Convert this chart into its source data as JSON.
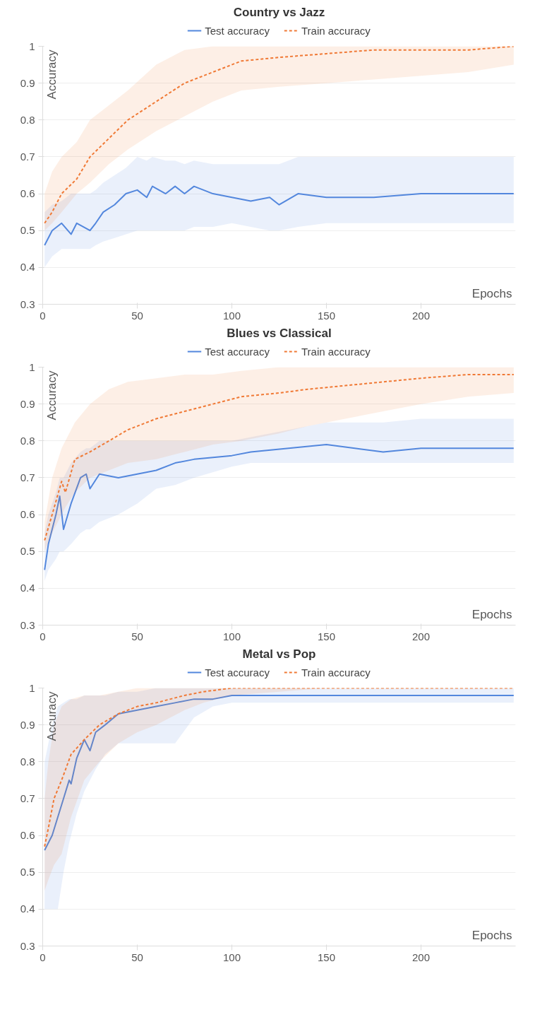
{
  "chart_data": [
    {
      "type": "line",
      "title": "Country vs Jazz",
      "xlabel": "Epochs",
      "ylabel": "Accuracy",
      "legend": "top",
      "grid": "y",
      "xlim": [
        0,
        250
      ],
      "ylim": [
        0.3,
        1
      ],
      "xticks": [
        0,
        50,
        100,
        150,
        200
      ],
      "yticks": [
        0.3,
        0.4,
        0.5,
        0.6,
        0.7,
        0.8,
        0.9,
        1
      ],
      "series": [
        {
          "name": "Test accuracy",
          "color": "#5387dd",
          "line_style": "solid",
          "x": [
            1,
            5,
            10,
            15,
            18,
            25,
            28,
            32,
            38,
            44,
            50,
            55,
            58,
            65,
            70,
            75,
            80,
            90,
            100,
            110,
            120,
            125,
            135,
            150,
            175,
            200,
            225,
            249
          ],
          "values": [
            0.46,
            0.5,
            0.52,
            0.49,
            0.52,
            0.5,
            0.52,
            0.55,
            0.57,
            0.6,
            0.61,
            0.59,
            0.62,
            0.6,
            0.62,
            0.6,
            0.62,
            0.6,
            0.59,
            0.58,
            0.59,
            0.57,
            0.6,
            0.59,
            0.59,
            0.6,
            0.6,
            0.6
          ],
          "lower": [
            0.4,
            0.43,
            0.45,
            0.45,
            0.45,
            0.45,
            0.46,
            0.47,
            0.48,
            0.49,
            0.5,
            0.5,
            0.5,
            0.5,
            0.5,
            0.5,
            0.51,
            0.51,
            0.52,
            0.51,
            0.5,
            0.5,
            0.51,
            0.52,
            0.52,
            0.52,
            0.52,
            0.52
          ],
          "upper": [
            0.55,
            0.57,
            0.58,
            0.6,
            0.6,
            0.6,
            0.61,
            0.63,
            0.65,
            0.67,
            0.7,
            0.69,
            0.7,
            0.69,
            0.69,
            0.68,
            0.69,
            0.68,
            0.68,
            0.68,
            0.68,
            0.68,
            0.7,
            0.7,
            0.7,
            0.7,
            0.7,
            0.7
          ]
        },
        {
          "name": "Train accuracy",
          "color": "#f07935",
          "line_style": "dashed",
          "x": [
            1,
            5,
            10,
            18,
            25,
            35,
            45,
            60,
            75,
            90,
            105,
            125,
            150,
            175,
            200,
            225,
            249
          ],
          "values": [
            0.52,
            0.55,
            0.6,
            0.64,
            0.7,
            0.75,
            0.8,
            0.85,
            0.9,
            0.93,
            0.96,
            0.97,
            0.98,
            0.99,
            0.99,
            0.99,
            1
          ],
          "lower": [
            0.5,
            0.52,
            0.55,
            0.6,
            0.63,
            0.68,
            0.72,
            0.77,
            0.81,
            0.85,
            0.88,
            0.89,
            0.9,
            0.91,
            0.92,
            0.93,
            0.95
          ],
          "upper": [
            0.6,
            0.66,
            0.7,
            0.74,
            0.8,
            0.84,
            0.88,
            0.95,
            0.99,
            1,
            1,
            1,
            1,
            1,
            1,
            1,
            1
          ]
        }
      ]
    },
    {
      "type": "line",
      "title": "Blues vs Classical",
      "xlabel": "Epochs",
      "ylabel": "Accuracy",
      "legend": "top",
      "grid": "y",
      "xlim": [
        0,
        250
      ],
      "ylim": [
        0.3,
        1
      ],
      "xticks": [
        0,
        50,
        100,
        150,
        200
      ],
      "yticks": [
        0.3,
        0.4,
        0.5,
        0.6,
        0.7,
        0.8,
        0.9,
        1
      ],
      "series": [
        {
          "name": "Test accuracy",
          "color": "#5387dd",
          "line_style": "solid",
          "x": [
            1,
            3,
            7,
            9,
            11,
            15,
            20,
            23,
            25,
            30,
            40,
            50,
            60,
            70,
            80,
            100,
            110,
            130,
            150,
            165,
            180,
            200,
            225,
            249
          ],
          "values": [
            0.45,
            0.52,
            0.6,
            0.65,
            0.56,
            0.63,
            0.7,
            0.71,
            0.67,
            0.71,
            0.7,
            0.71,
            0.72,
            0.74,
            0.75,
            0.76,
            0.77,
            0.78,
            0.79,
            0.78,
            0.77,
            0.78,
            0.78,
            0.78
          ],
          "lower": [
            0.42,
            0.45,
            0.48,
            0.5,
            0.5,
            0.52,
            0.55,
            0.56,
            0.56,
            0.58,
            0.6,
            0.63,
            0.67,
            0.68,
            0.7,
            0.73,
            0.74,
            0.74,
            0.74,
            0.74,
            0.74,
            0.74,
            0.74,
            0.74
          ],
          "upper": [
            0.55,
            0.6,
            0.66,
            0.7,
            0.7,
            0.74,
            0.77,
            0.78,
            0.78,
            0.8,
            0.8,
            0.8,
            0.8,
            0.8,
            0.8,
            0.8,
            0.81,
            0.83,
            0.85,
            0.85,
            0.85,
            0.86,
            0.86,
            0.86
          ]
        },
        {
          "name": "Train accuracy",
          "color": "#f07935",
          "line_style": "dashed",
          "x": [
            1,
            5,
            10,
            12,
            17,
            25,
            35,
            45,
            60,
            75,
            90,
            105,
            125,
            140,
            160,
            180,
            200,
            225,
            249
          ],
          "values": [
            0.53,
            0.6,
            0.69,
            0.66,
            0.75,
            0.77,
            0.8,
            0.83,
            0.86,
            0.88,
            0.9,
            0.92,
            0.93,
            0.94,
            0.95,
            0.96,
            0.97,
            0.98,
            0.98
          ],
          "lower": [
            0.5,
            0.55,
            0.6,
            0.62,
            0.66,
            0.7,
            0.72,
            0.74,
            0.75,
            0.77,
            0.79,
            0.8,
            0.82,
            0.84,
            0.86,
            0.88,
            0.9,
            0.92,
            0.93
          ],
          "upper": [
            0.58,
            0.7,
            0.78,
            0.8,
            0.85,
            0.9,
            0.94,
            0.96,
            0.97,
            0.98,
            0.98,
            0.99,
            1,
            1,
            1,
            1,
            1,
            1,
            1
          ]
        }
      ]
    },
    {
      "type": "line",
      "title": "Metal vs Pop",
      "xlabel": "Epochs",
      "ylabel": "Accuracy",
      "legend": "top",
      "grid": "y",
      "xlim": [
        0,
        250
      ],
      "ylim": [
        0.3,
        1
      ],
      "xticks": [
        0,
        50,
        100,
        150,
        200
      ],
      "yticks": [
        0.3,
        0.4,
        0.5,
        0.6,
        0.7,
        0.8,
        0.9,
        1
      ],
      "series": [
        {
          "name": "Test accuracy",
          "color": "#5387dd",
          "line_style": "solid",
          "x": [
            1,
            5,
            8,
            11,
            14,
            15,
            18,
            22,
            25,
            28,
            33,
            40,
            50,
            60,
            70,
            80,
            90,
            100,
            150,
            200,
            249
          ],
          "values": [
            0.56,
            0.6,
            0.65,
            0.7,
            0.75,
            0.74,
            0.81,
            0.86,
            0.83,
            0.88,
            0.9,
            0.93,
            0.94,
            0.95,
            0.96,
            0.97,
            0.97,
            0.98,
            0.98,
            0.98,
            0.98
          ],
          "lower": [
            0.4,
            0.4,
            0.4,
            0.5,
            0.58,
            0.6,
            0.66,
            0.72,
            0.75,
            0.78,
            0.82,
            0.85,
            0.85,
            0.85,
            0.85,
            0.92,
            0.95,
            0.96,
            0.96,
            0.96,
            0.96
          ],
          "upper": [
            0.8,
            0.9,
            0.95,
            0.96,
            0.97,
            0.97,
            0.97,
            0.98,
            0.98,
            0.98,
            0.98,
            0.99,
            0.99,
            1,
            1,
            1,
            1,
            1,
            1,
            1,
            1
          ]
        },
        {
          "name": "Train accuracy",
          "color": "#f07935",
          "line_style": "dashed",
          "x": [
            1,
            3,
            6,
            10,
            15,
            22,
            30,
            40,
            50,
            60,
            75,
            85,
            100,
            150,
            200,
            249
          ],
          "values": [
            0.57,
            0.62,
            0.7,
            0.75,
            0.82,
            0.86,
            0.9,
            0.93,
            0.95,
            0.96,
            0.98,
            0.99,
            1,
            1,
            1,
            1
          ],
          "lower": [
            0.45,
            0.48,
            0.52,
            0.55,
            0.65,
            0.75,
            0.8,
            0.85,
            0.88,
            0.9,
            0.94,
            0.96,
            0.98,
            1,
            1,
            1
          ],
          "upper": [
            0.7,
            0.8,
            0.9,
            0.95,
            0.97,
            0.98,
            0.98,
            0.99,
            1,
            1,
            1,
            1,
            1,
            1,
            1,
            1
          ]
        }
      ]
    }
  ]
}
